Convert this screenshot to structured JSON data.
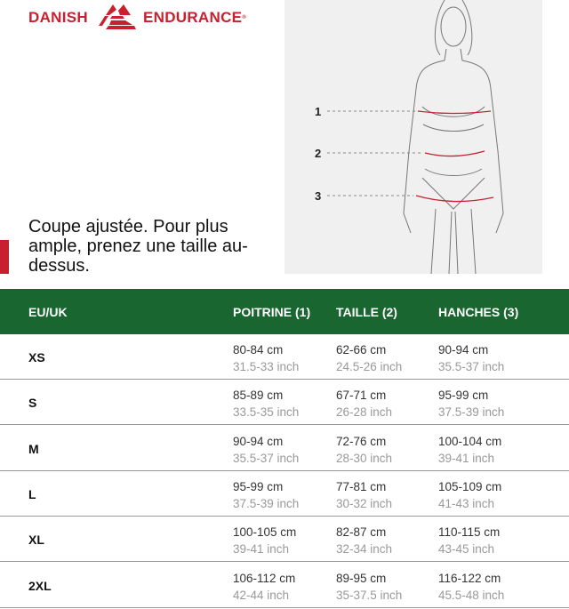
{
  "brand": {
    "left": "DANISH",
    "right": "ENDURANCE",
    "color": "#c8202f"
  },
  "figure": {
    "markers": [
      "1",
      "2",
      "3"
    ]
  },
  "tagline": "Coupe ajustée. Pour plus ample, prenez une taille au-dessus.",
  "table": {
    "header_color": "#1a6630",
    "headers": [
      "EU/UK",
      "POITRINE (1)",
      "TAILLE (2)",
      "HANCHES (3)"
    ],
    "rows": [
      {
        "size": "XS",
        "cols": [
          [
            "80-84 cm",
            "31.5-33 inch"
          ],
          [
            "62-66 cm",
            "24.5-26 inch"
          ],
          [
            "90-94 cm",
            "35.5-37 inch"
          ]
        ]
      },
      {
        "size": "S",
        "cols": [
          [
            "85-89 cm",
            "33.5-35 inch"
          ],
          [
            "67-71 cm",
            "26-28 inch"
          ],
          [
            "95-99 cm",
            "37.5-39 inch"
          ]
        ]
      },
      {
        "size": "M",
        "cols": [
          [
            "90-94 cm",
            "35.5-37 inch"
          ],
          [
            "72-76 cm",
            "28-30 inch"
          ],
          [
            "100-104 cm",
            "39-41 inch"
          ]
        ]
      },
      {
        "size": "L",
        "cols": [
          [
            "95-99 cm",
            "37.5-39 inch"
          ],
          [
            "77-81 cm",
            "30-32 inch"
          ],
          [
            "105-109 cm",
            "41-43 inch"
          ]
        ]
      },
      {
        "size": "XL",
        "cols": [
          [
            "100-105 cm",
            "39-41 inch"
          ],
          [
            "82-87 cm",
            "32-34 inch"
          ],
          [
            "110-115 cm",
            "43-45 inch"
          ]
        ]
      },
      {
        "size": "2XL",
        "cols": [
          [
            "106-112 cm",
            "42-44 inch"
          ],
          [
            "89-95 cm",
            "35-37.5 inch"
          ],
          [
            "116-122 cm",
            "45.5-48 inch"
          ]
        ]
      }
    ]
  }
}
